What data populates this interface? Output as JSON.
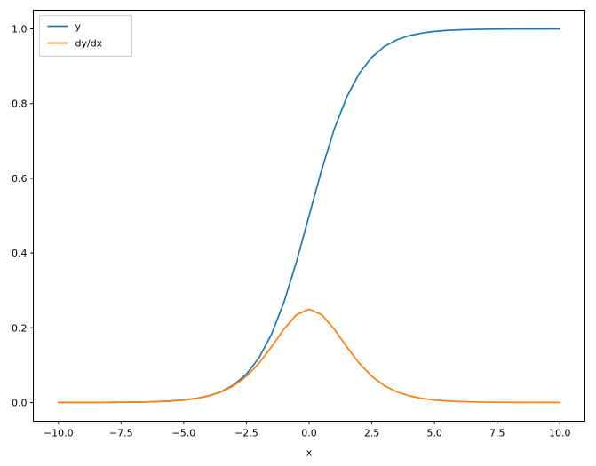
{
  "chart_data": {
    "type": "line",
    "title": "",
    "xlabel": "x",
    "ylabel": "",
    "grid": false,
    "xlim": [
      -11,
      11
    ],
    "ylim": [
      -0.05,
      1.05
    ],
    "x_ticks": [
      -10.0,
      -7.5,
      -5.0,
      -2.5,
      0.0,
      2.5,
      5.0,
      7.5,
      10.0
    ],
    "x_tick_labels": [
      "−10.0",
      "−7.5",
      "−5.0",
      "−2.5",
      "0.0",
      "2.5",
      "5.0",
      "7.5",
      "10.0"
    ],
    "y_ticks": [
      0.0,
      0.2,
      0.4,
      0.6,
      0.8,
      1.0
    ],
    "y_tick_labels": [
      "0.0",
      "0.2",
      "0.4",
      "0.6",
      "0.8",
      "1.0"
    ],
    "legend": {
      "position": "upper left",
      "entries": [
        {
          "label": "y",
          "color": "#1f77b4"
        },
        {
          "label": "dy/dx",
          "color": "#ff7f0e"
        }
      ]
    },
    "x": [
      -10,
      -9.5,
      -9,
      -8.5,
      -8,
      -7.5,
      -7,
      -6.5,
      -6,
      -5.5,
      -5,
      -4.5,
      -4,
      -3.5,
      -3,
      -2.5,
      -2,
      -1.5,
      -1,
      -0.5,
      0,
      0.5,
      1,
      1.5,
      2,
      2.5,
      3,
      3.5,
      4,
      4.5,
      5,
      5.5,
      6,
      6.5,
      7,
      7.5,
      8,
      8.5,
      9,
      9.5,
      10
    ],
    "series": [
      {
        "name": "y",
        "color": "#1f77b4",
        "values": [
          0.0,
          0.0001,
          0.0001,
          0.0002,
          0.0003,
          0.0006,
          0.0009,
          0.0015,
          0.0025,
          0.0041,
          0.0067,
          0.011,
          0.018,
          0.0293,
          0.0474,
          0.0759,
          0.1192,
          0.1824,
          0.2689,
          0.3775,
          0.5,
          0.6225,
          0.7311,
          0.8176,
          0.8808,
          0.9241,
          0.9526,
          0.9707,
          0.982,
          0.989,
          0.9933,
          0.9959,
          0.9975,
          0.9985,
          0.9991,
          0.9994,
          0.9997,
          0.9998,
          0.9999,
          0.9999,
          1.0
        ]
      },
      {
        "name": "dy/dx",
        "color": "#ff7f0e",
        "values": [
          0.0,
          0.0001,
          0.0001,
          0.0002,
          0.0003,
          0.0006,
          0.0009,
          0.0015,
          0.0025,
          0.0041,
          0.0066,
          0.0109,
          0.0177,
          0.0285,
          0.0452,
          0.0701,
          0.105,
          0.1491,
          0.1966,
          0.235,
          0.25,
          0.235,
          0.1966,
          0.1491,
          0.105,
          0.0701,
          0.0452,
          0.0285,
          0.0177,
          0.0109,
          0.0066,
          0.0041,
          0.0025,
          0.0015,
          0.0009,
          0.0006,
          0.0003,
          0.0002,
          0.0001,
          0.0001,
          0.0
        ]
      }
    ]
  }
}
